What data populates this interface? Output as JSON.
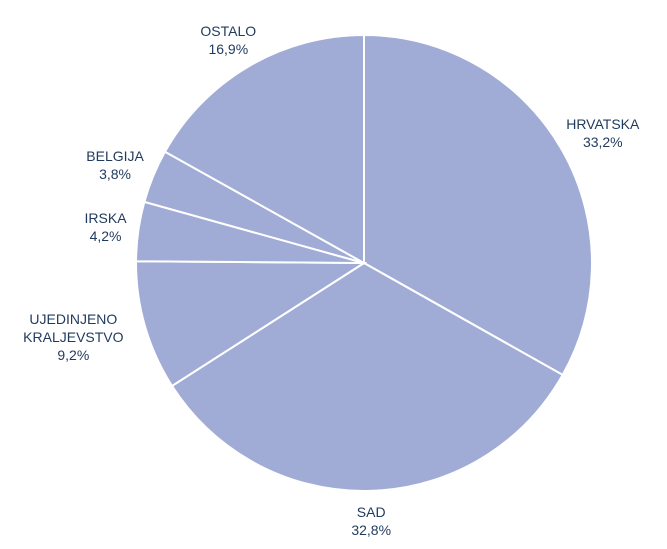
{
  "chart_data": {
    "type": "pie",
    "categories": [
      "HRVATSKA",
      "SAD",
      "UJEDINJENO KRALJEVSTVO",
      "IRSKA",
      "BELGIJA",
      "OSTALO"
    ],
    "values": [
      33.2,
      32.8,
      9.2,
      4.2,
      3.8,
      16.9
    ],
    "value_labels": [
      "33,2%",
      "32,8%",
      "9,2%",
      "4,2%",
      "3,8%",
      "16,9%"
    ],
    "color": "#a1acd6"
  }
}
